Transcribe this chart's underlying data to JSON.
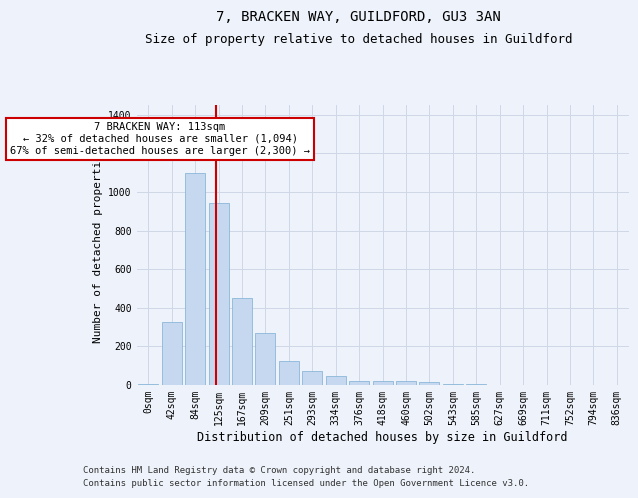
{
  "title": "7, BRACKEN WAY, GUILDFORD, GU3 3AN",
  "subtitle": "Size of property relative to detached houses in Guildford",
  "xlabel": "Distribution of detached houses by size in Guildford",
  "ylabel": "Number of detached properties",
  "footer_line1": "Contains HM Land Registry data © Crown copyright and database right 2024.",
  "footer_line2": "Contains public sector information licensed under the Open Government Licence v3.0.",
  "bar_labels": [
    "0sqm",
    "42sqm",
    "84sqm",
    "125sqm",
    "167sqm",
    "209sqm",
    "251sqm",
    "293sqm",
    "334sqm",
    "376sqm",
    "418sqm",
    "460sqm",
    "502sqm",
    "543sqm",
    "585sqm",
    "627sqm",
    "669sqm",
    "711sqm",
    "752sqm",
    "794sqm",
    "836sqm"
  ],
  "bar_values": [
    5,
    325,
    1100,
    940,
    450,
    270,
    125,
    70,
    45,
    20,
    22,
    20,
    15,
    5,
    3,
    2,
    0,
    2,
    0,
    1,
    1
  ],
  "bar_color": "#c5d8f0",
  "bar_edge_color": "#7bafd4",
  "grid_color": "#d0d8e8",
  "background_color": "#eef2fa",
  "vline_x": 2.87,
  "vline_color": "#cc0000",
  "annotation_text": "7 BRACKEN WAY: 113sqm\n← 32% of detached houses are smaller (1,094)\n67% of semi-detached houses are larger (2,300) →",
  "annotation_box_color": "#ffffff",
  "annotation_box_edge": "#cc0000",
  "ylim": [
    0,
    1450
  ],
  "yticks": [
    0,
    200,
    400,
    600,
    800,
    1000,
    1200,
    1400
  ],
  "title_fontsize": 10,
  "subtitle_fontsize": 9,
  "tick_fontsize": 7,
  "ylabel_fontsize": 8,
  "xlabel_fontsize": 8.5,
  "annot_fontsize": 7.5,
  "footer_fontsize": 6.5
}
